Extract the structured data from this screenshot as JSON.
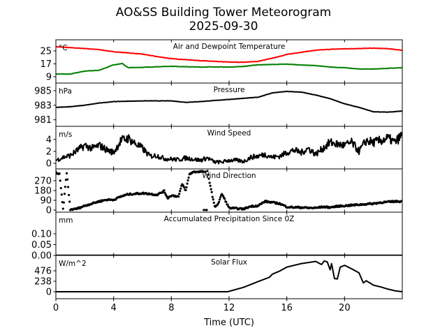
{
  "chart_data": {
    "type": "line",
    "title": "AO&SS Building Tower Meteorogram",
    "subtitle": "2025-09-30",
    "xlabel": "Time (UTC)",
    "xlim": [
      0,
      24
    ],
    "xticks": [
      0,
      4,
      8,
      12,
      16,
      20
    ],
    "panels": [
      {
        "name": "temperature",
        "title": "Air and Dewpoint Temperature",
        "unit": "°C",
        "ylim": [
          5.1,
          31.9
        ],
        "yticks": [
          9,
          17,
          25
        ],
        "series": [
          {
            "name": "Air Temperature",
            "color": "#ff0000",
            "x": [
              0,
              1,
              2,
              3,
              4,
              5,
              6,
              7,
              8,
              9,
              10,
              11,
              12,
              13,
              14,
              15,
              16,
              17,
              18,
              19,
              20,
              21,
              22,
              23,
              24
            ],
            "y": [
              27.6,
              27.0,
              26.5,
              25.8,
              24.5,
              23.8,
              23.0,
              21.5,
              20.2,
              19.6,
              19.0,
              18.5,
              18.1,
              18.0,
              18.5,
              20.5,
              22.8,
              24.2,
              25.4,
              26.0,
              26.3,
              26.5,
              26.7,
              26.4,
              25.4
            ]
          },
          {
            "name": "Dewpoint",
            "color": "#008000",
            "x": [
              0,
              1,
              2,
              3,
              4,
              4.6,
              5,
              6,
              7,
              8,
              9,
              10,
              11,
              12,
              13,
              14,
              15,
              16,
              17,
              18,
              19,
              20,
              21,
              22,
              23,
              24
            ],
            "y": [
              10.7,
              10.7,
              12.5,
              13.0,
              16.4,
              17.2,
              14.6,
              14.8,
              15.2,
              15.5,
              15.2,
              15.0,
              15.1,
              15.0,
              15.4,
              16.4,
              16.6,
              16.8,
              16.3,
              15.9,
              15.0,
              14.6,
              13.8,
              13.8,
              14.2,
              14.6
            ]
          }
        ]
      },
      {
        "name": "pressure",
        "title": "Pressure",
        "unit": "hPa",
        "ylim": [
          980.1,
          986.05
        ],
        "yticks": [
          981,
          983,
          985
        ],
        "series": [
          {
            "name": "Pressure",
            "color": "#000000",
            "x": [
              0,
              1,
              2,
              3,
              4,
              5,
              6,
              7,
              8,
              9,
              10,
              11,
              12,
              13,
              14,
              15,
              16,
              17,
              18,
              19,
              20,
              21,
              22,
              23,
              24
            ],
            "y": [
              982.7,
              982.8,
              983.0,
              983.3,
              983.5,
              983.55,
              983.6,
              983.6,
              983.6,
              983.4,
              983.5,
              983.65,
              983.8,
              983.95,
              984.1,
              984.7,
              984.9,
              984.8,
              984.4,
              983.9,
              983.2,
              982.7,
              982.1,
              982.05,
              982.2
            ]
          }
        ]
      },
      {
        "name": "wind-speed",
        "title": "Wind Speed",
        "unit": "m/s",
        "ylim": [
          -0.94,
          6.2
        ],
        "yticks": [
          0,
          2,
          4
        ],
        "series": [
          {
            "name": "Wind Speed",
            "color": "#000000",
            "x": [
              0,
              0.5,
              1,
              1.5,
              2,
              2.5,
              3,
              3.5,
              4,
              4.5,
              5,
              5.5,
              6,
              6.5,
              7,
              7.5,
              8,
              8.5,
              9,
              9.5,
              10,
              10.5,
              11,
              11.5,
              12,
              12.5,
              13,
              13.5,
              14,
              14.5,
              15,
              15.5,
              16,
              16.5,
              17,
              17.5,
              18,
              18.5,
              19,
              19.5,
              20,
              20.5,
              21,
              21.5,
              22,
              22.5,
              23,
              23.5,
              24
            ],
            "y": [
              0.5,
              1.0,
              1.3,
              2.2,
              3.0,
              2.5,
              3.0,
              2.3,
              1.8,
              3.8,
              4.2,
              3.3,
              2.5,
              1.2,
              1.3,
              0.8,
              0.7,
              0.6,
              0.9,
              0.7,
              0.5,
              0.9,
              0.2,
              0.2,
              0.5,
              0.5,
              0.3,
              1.0,
              1.2,
              1.5,
              1.0,
              1.2,
              1.8,
              2.2,
              1.8,
              2.5,
              1.5,
              2.5,
              3.5,
              3.2,
              3.0,
              3.5,
              2.0,
              3.8,
              3.5,
              3.8,
              4.2,
              3.5,
              4.8
            ]
          }
        ]
      },
      {
        "name": "wind-direction",
        "title": "Wind Direction",
        "unit": "",
        "type": "scatter",
        "ylim": [
          -19,
          379
        ],
        "yticks": [
          0,
          90,
          180,
          270
        ],
        "series": [
          {
            "name": "Wind Direction",
            "color": "#000000",
            "x": [
              0,
              0.25,
              0.5,
              0.75,
              1,
              1.25,
              1.5,
              2,
              2.5,
              3,
              3.5,
              4,
              4.5,
              5,
              5.5,
              6,
              6.5,
              7,
              7.5,
              7.75,
              8,
              8.5,
              8.75,
              9,
              9.25,
              9.5,
              10,
              10.5,
              11,
              11.25,
              11.5,
              12,
              12.5,
              13,
              13.5,
              14,
              14.5,
              15,
              15.5,
              16,
              16.5,
              17,
              17.5,
              18,
              18.5,
              19,
              19.5,
              20,
              20.5,
              21,
              21.5,
              22,
              22.5,
              23,
              23.5,
              24
            ],
            "y": [
              345,
              330,
              8,
              345,
              5,
              8,
              15,
              40,
              60,
              80,
              95,
              95,
              125,
              145,
              150,
              155,
              150,
              140,
              175,
              110,
              135,
              125,
              240,
              180,
              330,
              350,
              355,
              355,
              30,
              60,
              150,
              20,
              15,
              10,
              35,
              40,
              80,
              70,
              60,
              30,
              25,
              25,
              20,
              20,
              30,
              25,
              35,
              40,
              45,
              50,
              55,
              60,
              70,
              75,
              80,
              80
            ]
          }
        ]
      },
      {
        "name": "precipitation",
        "title": "Accumulated Precipitation Since 0Z",
        "unit": "mm",
        "ylim": [
          0,
          0.2
        ],
        "yticks": [
          "0.00",
          "0.05",
          "0.10"
        ],
        "series": [
          {
            "name": "Precipitation",
            "color": "#000000",
            "x": [
              0,
              24
            ],
            "y": [
              0,
              0
            ]
          }
        ]
      },
      {
        "name": "solar-flux",
        "title": "Solar Flux",
        "unit": "W/m^2",
        "ylim": [
          -159,
          826
        ],
        "yticks": [
          0,
          238,
          476
        ],
        "series": [
          {
            "name": "Solar Flux",
            "color": "#000000",
            "x": [
              0,
              11.9,
              13,
              14,
              14.8,
              15,
              15.5,
              16,
              17,
              18,
              18.4,
              18.6,
              18.8,
              19,
              19.1,
              19.3,
              19.5,
              19.7,
              20,
              20.5,
              21,
              21.3,
              21.5,
              22,
              22.5,
              23,
              23.5,
              24
            ],
            "y": [
              0,
              0,
              100,
              230,
              330,
              400,
              470,
              560,
              640,
              690,
              620,
              700,
              680,
              500,
              640,
              300,
              290,
              560,
              600,
              520,
              430,
              200,
              250,
              150,
              110,
              60,
              20,
              0
            ]
          }
        ]
      }
    ]
  }
}
